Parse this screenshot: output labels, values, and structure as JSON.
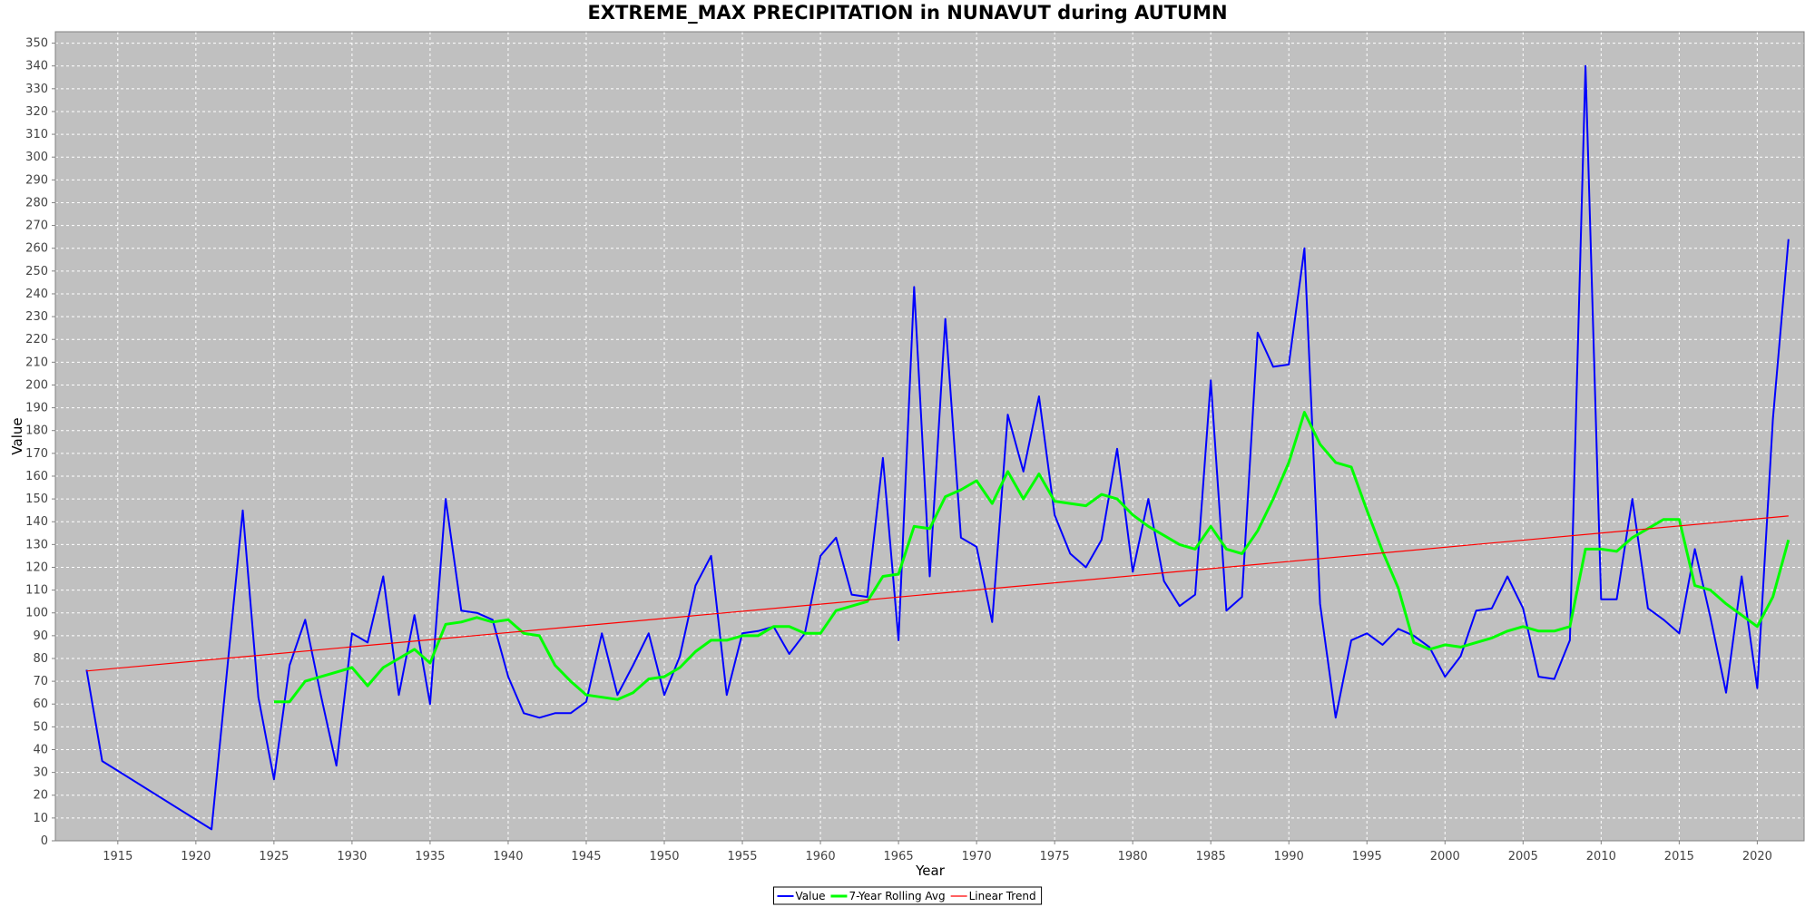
{
  "chart_data": {
    "type": "line",
    "title": "EXTREME_MAX PRECIPITATION in NUNAVUT during AUTUMN",
    "xlabel": "Year",
    "ylabel": "Value",
    "xlim": [
      1911,
      2023
    ],
    "ylim": [
      0,
      355
    ],
    "x_ticks": [
      1915,
      1920,
      1925,
      1930,
      1935,
      1940,
      1945,
      1950,
      1955,
      1960,
      1965,
      1970,
      1975,
      1980,
      1985,
      1990,
      1995,
      2000,
      2005,
      2010,
      2015,
      2020
    ],
    "y_ticks": [
      0,
      10,
      20,
      30,
      40,
      50,
      60,
      70,
      80,
      90,
      100,
      110,
      120,
      130,
      140,
      150,
      160,
      170,
      180,
      190,
      200,
      210,
      220,
      230,
      240,
      250,
      260,
      270,
      280,
      290,
      300,
      310,
      320,
      330,
      340,
      350
    ],
    "grid": true,
    "legend_position": "bottom",
    "series": [
      {
        "name": "Value",
        "color": "#0000ff",
        "x": [
          1913,
          1914,
          1921,
          1922,
          1923,
          1924,
          1925,
          1926,
          1927,
          1928,
          1929,
          1930,
          1931,
          1932,
          1933,
          1934,
          1935,
          1936,
          1937,
          1938,
          1939,
          1940,
          1941,
          1942,
          1943,
          1944,
          1945,
          1946,
          1947,
          1948,
          1949,
          1950,
          1951,
          1952,
          1953,
          1954,
          1955,
          1956,
          1957,
          1958,
          1959,
          1960,
          1961,
          1962,
          1963,
          1964,
          1965,
          1966,
          1967,
          1968,
          1969,
          1970,
          1971,
          1972,
          1973,
          1974,
          1975,
          1976,
          1977,
          1978,
          1979,
          1980,
          1981,
          1982,
          1983,
          1984,
          1985,
          1986,
          1987,
          1988,
          1989,
          1990,
          1991,
          1992,
          1993,
          1994,
          1995,
          1996,
          1997,
          1998,
          1999,
          2000,
          2001,
          2002,
          2003,
          2004,
          2005,
          2006,
          2007,
          2008,
          2009,
          2010,
          2011,
          2012,
          2013,
          2014,
          2015,
          2016,
          2017,
          2018,
          2019,
          2020,
          2021,
          2022
        ],
        "values": [
          75,
          35,
          5,
          75,
          145,
          63,
          27,
          77,
          97,
          64,
          33,
          91,
          87,
          116,
          64,
          99,
          60,
          150,
          101,
          100,
          97,
          72,
          56,
          54,
          56,
          56,
          61,
          91,
          64,
          77,
          91,
          64,
          81,
          112,
          125,
          64,
          91,
          92,
          94,
          82,
          91,
          125,
          133,
          108,
          107,
          168,
          88,
          243,
          116,
          229,
          133,
          129,
          96,
          187,
          162,
          195,
          143,
          126,
          120,
          132,
          172,
          118,
          150,
          114,
          103,
          108,
          202,
          101,
          107,
          223,
          208,
          209,
          260,
          104,
          54,
          88,
          91,
          86,
          93,
          90,
          85,
          72,
          81,
          101,
          102,
          116,
          102,
          72,
          71,
          88,
          340,
          106,
          106,
          150,
          102,
          97,
          91,
          128,
          98,
          65,
          116,
          67,
          185,
          264
        ]
      },
      {
        "name": "7-Year Rolling Avg",
        "color": "#00ff00",
        "x": [
          1925,
          1926,
          1927,
          1928,
          1929,
          1930,
          1931,
          1932,
          1933,
          1934,
          1935,
          1936,
          1937,
          1938,
          1939,
          1940,
          1941,
          1942,
          1943,
          1944,
          1945,
          1946,
          1947,
          1948,
          1949,
          1950,
          1951,
          1952,
          1953,
          1954,
          1955,
          1956,
          1957,
          1958,
          1959,
          1960,
          1961,
          1962,
          1963,
          1964,
          1965,
          1966,
          1967,
          1968,
          1969,
          1970,
          1971,
          1972,
          1973,
          1974,
          1975,
          1976,
          1977,
          1978,
          1979,
          1980,
          1981,
          1982,
          1983,
          1984,
          1985,
          1986,
          1987,
          1988,
          1989,
          1990,
          1991,
          1992,
          1993,
          1994,
          1995,
          1996,
          1997,
          1998,
          1999,
          2000,
          2001,
          2002,
          2003,
          2004,
          2005,
          2006,
          2007,
          2008,
          2009,
          2010,
          2011,
          2012,
          2013,
          2014,
          2015,
          2016,
          2017,
          2018,
          2019,
          2020,
          2021,
          2022
        ],
        "values": [
          61,
          61,
          70,
          72,
          74,
          76,
          68,
          76,
          80,
          84,
          78,
          95,
          96,
          98,
          96,
          97,
          91,
          90,
          77,
          70,
          64,
          63,
          62,
          65,
          71,
          72,
          76,
          83,
          88,
          88,
          90,
          90,
          94,
          94,
          91,
          91,
          101,
          103,
          105,
          116,
          117,
          138,
          137,
          151,
          154,
          158,
          148,
          162,
          150,
          161,
          149,
          148,
          147,
          152,
          150,
          143,
          138,
          134,
          130,
          128,
          138,
          128,
          126,
          136,
          150,
          166,
          188,
          174,
          166,
          164,
          145,
          127,
          111,
          87,
          84,
          86,
          85,
          87,
          89,
          92,
          94,
          92,
          92,
          94,
          128,
          128,
          127,
          133,
          137,
          141,
          141,
          112,
          110,
          104,
          99,
          94,
          107,
          132
        ]
      },
      {
        "name": "Linear Trend",
        "color": "#ff0000",
        "x": [
          1913,
          2022
        ],
        "values": [
          74.5,
          142.5
        ]
      }
    ]
  }
}
